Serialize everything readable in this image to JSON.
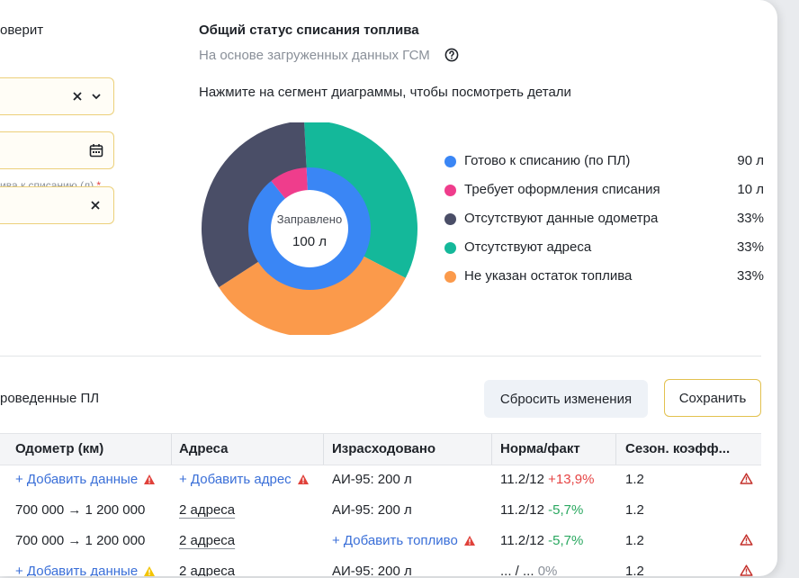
{
  "left_panel": {
    "label_top": "оверит",
    "field1": {
      "clear_icon": "close-icon",
      "chevron_icon": "chevron-down-icon"
    },
    "field2": {
      "calendar_icon": "calendar-icon"
    },
    "field3": {
      "label": "ива к списанию (л)",
      "required_mark": "*",
      "clear_icon": "close-icon"
    }
  },
  "status": {
    "title": "Общий статус списания топлива",
    "subtitle": "На основе загруженных данных ГСМ",
    "help_icon": "question-circle-icon",
    "hint": "Нажмите на сегмент диаграммы, чтобы посмотреть детали"
  },
  "chart_data": {
    "type": "pie",
    "center_label": "Заправлено",
    "center_value": "100 л",
    "outer_ring": [
      {
        "name": "Отсутствуют адреса",
        "value": 33,
        "color": "#14b89a"
      },
      {
        "name": "Не указан остаток топлива",
        "value": 33,
        "color": "#fb9a4b"
      },
      {
        "name": "Отсутствуют данные одометра",
        "value": 33,
        "color": "#4a4e67"
      }
    ],
    "inner_ring": [
      {
        "name": "Готово к списанию (по ПЛ)",
        "value": 90,
        "color": "#3a86f5"
      },
      {
        "name": "Требует оформления списания",
        "value": 10,
        "color": "#ef3d8c"
      }
    ],
    "legend": [
      {
        "label": "Готово к списанию (по ПЛ)",
        "value": "90 л",
        "color": "#3a86f5"
      },
      {
        "label": "Требует оформления списания",
        "value": "10 л",
        "color": "#ef3d8c"
      },
      {
        "label": "Отсутствуют данные одометра",
        "value": "33%",
        "color": "#4a4e67"
      },
      {
        "label": "Отсутствуют адреса",
        "value": "33%",
        "color": "#14b89a"
      },
      {
        "label": "Не указан остаток топлива",
        "value": "33%",
        "color": "#fb9a4b"
      }
    ]
  },
  "section": {
    "label": "роведенные ПЛ",
    "reset_label": "Сбросить изменения",
    "save_label": "Сохранить"
  },
  "table": {
    "headers": [
      "Одометр (км)",
      "Адреса",
      "Израсходовано",
      "Норма/факт",
      "Сезон. коэфф..."
    ],
    "rows": [
      {
        "odometer": "+ Добавить данные",
        "odometer_warn": "red",
        "addresses": "+ Добавить адрес",
        "addresses_warn": "red",
        "fuel": "АИ-95: 200 л",
        "norm": "11.2/12",
        "delta": "+13,9%",
        "coef": "1.2",
        "row_warn": true
      },
      {
        "odometer": "700 000 → 1 200 000",
        "addresses": "2 адреса",
        "fuel": "АИ-95: 200 л",
        "norm": "11.2/12",
        "delta": "-5,7%",
        "coef": "1.2",
        "row_warn": false
      },
      {
        "odometer": "700 000 → 1 200 000",
        "addresses": "2 адреса",
        "fuel": "+ Добавить топливо",
        "fuel_warn": "red",
        "norm": "11.2/12",
        "delta": "-5,7%",
        "coef": "1.2",
        "row_warn": true
      },
      {
        "odometer": "+ Добавить данные",
        "odometer_warn": "yellow",
        "addresses": "2 адреса",
        "fuel": "АИ-95: 200 л",
        "norm": "... / ...",
        "delta": "0%",
        "coef": "1.2",
        "row_warn": true
      }
    ]
  }
}
